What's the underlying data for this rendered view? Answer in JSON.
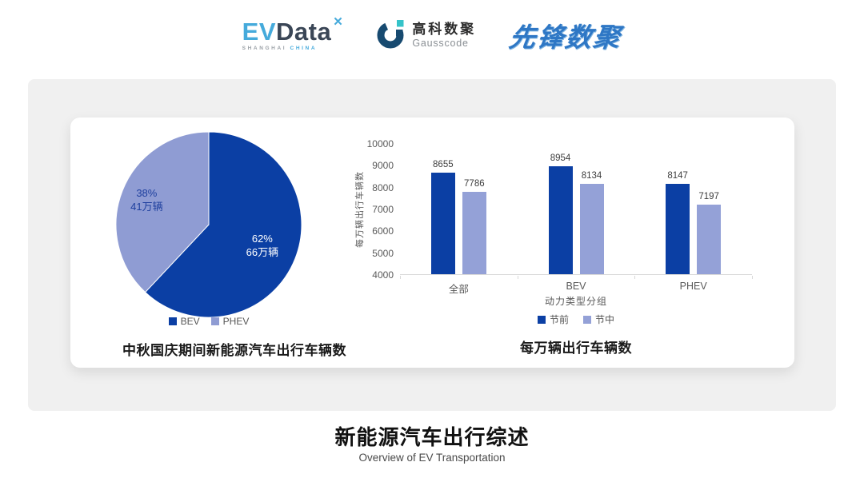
{
  "header": {
    "evdata": {
      "ev": "EV",
      "data": "Data",
      "x_mark": "✕",
      "sub_gray": "SHANGHAI",
      "sub_teal": "CHINA"
    },
    "gausscode": {
      "cn": "高科数聚",
      "en": "Gausscode"
    },
    "pioneer": {
      "text": "先锋数聚"
    }
  },
  "icons": {
    "evdata_x_mark": "four-point-spark",
    "gausscode_mark": "g-ring-with-squares"
  },
  "colors": {
    "primary_dark_blue": "#0B3FA4",
    "secondary_periwinkle": "#93A0D5",
    "panel_gray": "#F0F0F0",
    "axis_gray": "#D9D9D9",
    "text_gray": "#595959",
    "teal": "#45AADB",
    "pioneer_blue": "#2E77C5"
  },
  "chart_data": [
    {
      "type": "pie",
      "title": "中秋国庆期间新能源汽车出行车辆数",
      "start_angle_deg": 0,
      "direction": "clockwise",
      "slices": [
        {
          "label": "BEV",
          "percent": 62,
          "percent_label": "62%",
          "amount_label": "66万辆",
          "color": "#0B3FA4",
          "text_color": "#ffffff"
        },
        {
          "label": "PHEV",
          "percent": 38,
          "percent_label": "38%",
          "amount_label": "41万辆",
          "color": "#8F9CD3",
          "text_color": "#1E3F9E"
        }
      ],
      "legend_position": "bottom"
    },
    {
      "type": "bar",
      "title": "每万辆出行车辆数",
      "categories": [
        "全部",
        "BEV",
        "PHEV"
      ],
      "series": [
        {
          "name": "节前",
          "values": [
            8655,
            8954,
            8147
          ],
          "color": "#0B3FA4"
        },
        {
          "name": "节中",
          "values": [
            7786,
            8134,
            7197
          ],
          "color": "#94A1D7"
        }
      ],
      "xlabel": "动力类型分组",
      "ylabel": "每万辆出行车辆数",
      "ylim": [
        4000,
        10000
      ],
      "ytick_step": 1000,
      "grid": false,
      "legend_position": "bottom"
    }
  ],
  "footer": {
    "title": "新能源汽车出行综述",
    "subtitle": "Overview of EV Transportation"
  }
}
